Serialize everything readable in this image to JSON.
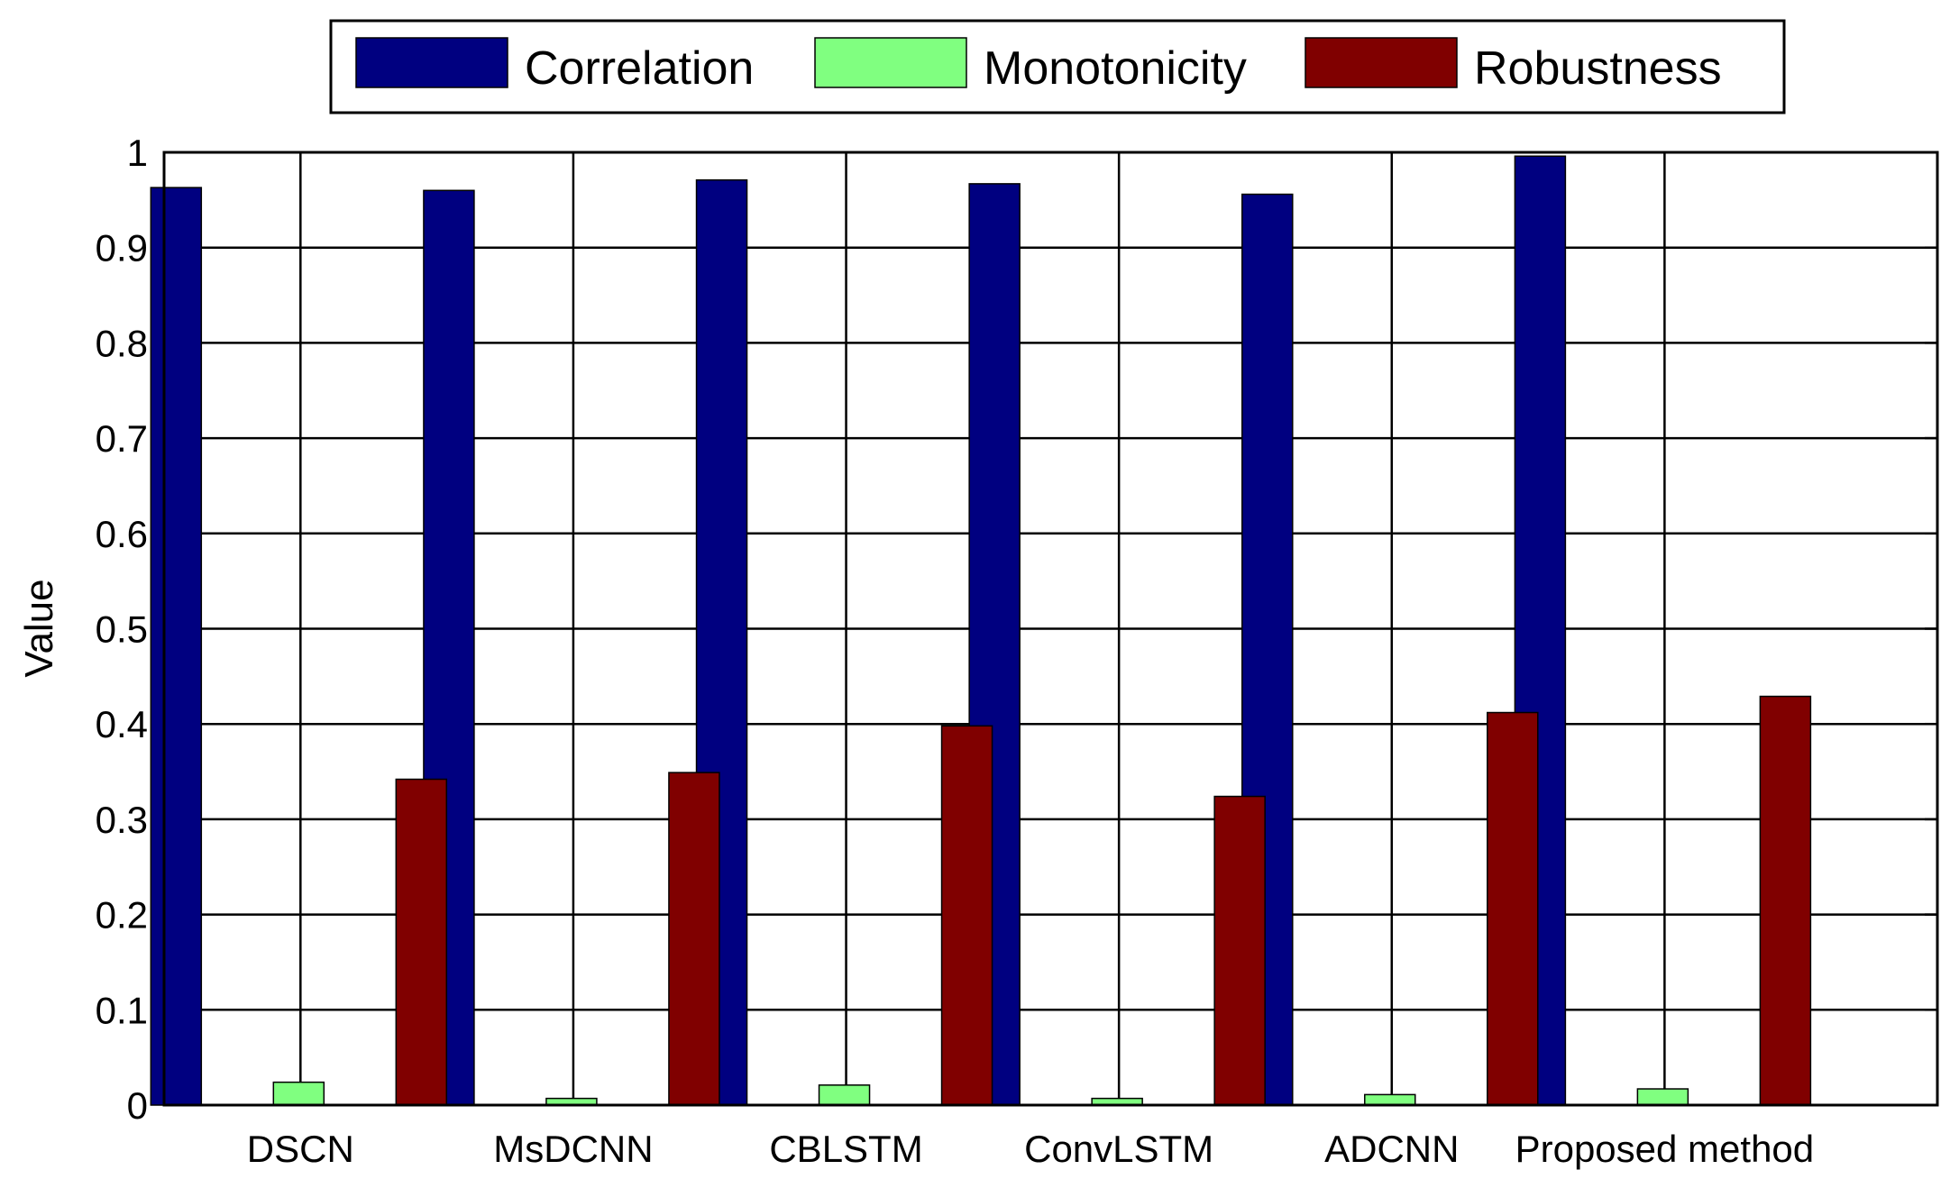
{
  "chart_data": {
    "type": "bar",
    "title": "",
    "xlabel": "",
    "ylabel": "Value",
    "ylim": [
      0,
      1
    ],
    "yticks": [
      0,
      0.1,
      0.2,
      0.3,
      0.4,
      0.5,
      0.6,
      0.7,
      0.8,
      0.9,
      1
    ],
    "ytick_labels": [
      "0",
      "0.1",
      "0.2",
      "0.3",
      "0.4",
      "0.5",
      "0.6",
      "0.7",
      "0.8",
      "0.9",
      "1"
    ],
    "grid": "vertical lines between groups, horizontal lines at y ticks",
    "legend_placement": "top, outside plot area",
    "categories": [
      "DSCN",
      "MsDCNN",
      "CBLSTM",
      "ConvLSTM",
      "ADCNN",
      "Proposed method"
    ],
    "series": [
      {
        "name": "Correlation",
        "color": "#000080",
        "values": [
          0.963,
          0.96,
          0.971,
          0.967,
          0.956,
          0.996
        ]
      },
      {
        "name": "Monotonicity",
        "color": "#80FF80",
        "values": [
          0.024,
          0.007,
          0.021,
          0.007,
          0.011,
          0.017
        ]
      },
      {
        "name": "Robustness",
        "color": "#800000",
        "values": [
          0.342,
          0.349,
          0.398,
          0.324,
          0.412,
          0.429
        ]
      }
    ]
  }
}
